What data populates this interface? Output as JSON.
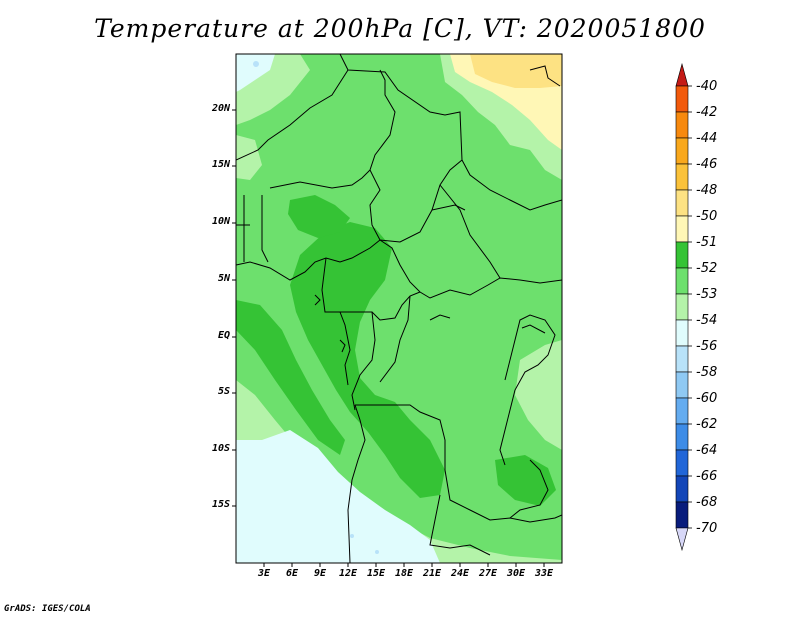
{
  "title": "Temperature at 200hPa [C], VT: 2020051800",
  "credit": "GrADS: IGES/COLA",
  "lat_ticks": [
    "20N",
    "15N",
    "10N",
    "5N",
    "EQ",
    "5S",
    "10S",
    "15S"
  ],
  "lon_ticks": [
    "3E",
    "6E",
    "9E",
    "12E",
    "15E",
    "18E",
    "21E",
    "24E",
    "27E",
    "30E",
    "33E"
  ],
  "colorbar": [
    {
      "label": "-40",
      "color": "#e8281f"
    },
    {
      "label": "-42",
      "color": "#f25a0c"
    },
    {
      "label": "-44",
      "color": "#f7890e"
    },
    {
      "label": "-46",
      "color": "#f9a81c"
    },
    {
      "label": "-48",
      "color": "#fbc23a"
    },
    {
      "label": "-50",
      "color": "#fde283"
    },
    {
      "label": "-51",
      "color": "#fff7b6"
    },
    {
      "label": "-52",
      "color": "#35c335"
    },
    {
      "label": "-53",
      "color": "#6de06d"
    },
    {
      "label": "-54",
      "color": "#b4f3a9"
    },
    {
      "label": "-56",
      "color": "#e0fcfd"
    },
    {
      "label": "-58",
      "color": "#b8e2f9"
    },
    {
      "label": "-60",
      "color": "#8fc9f3"
    },
    {
      "label": "-62",
      "color": "#64acf0"
    },
    {
      "label": "-64",
      "color": "#3d8ce7"
    },
    {
      "label": "-66",
      "color": "#2166d8"
    },
    {
      "label": "-68",
      "color": "#1346b8"
    },
    {
      "label": "-70",
      "color": "#081c7c"
    }
  ],
  "colorbar_overflow": {
    "top_color": "#c41a16",
    "bottom_color": "#d7d7f7"
  },
  "field_colors": {
    "warm_cap": "#fde283",
    "pale_yellow": "#fff7b6",
    "dark_green": "#35c335",
    "mid_green": "#6de06d",
    "light_green": "#b4f3a9",
    "cyan": "#e0fcfd",
    "light_blue": "#b8e2f9",
    "border": "#000000"
  }
}
